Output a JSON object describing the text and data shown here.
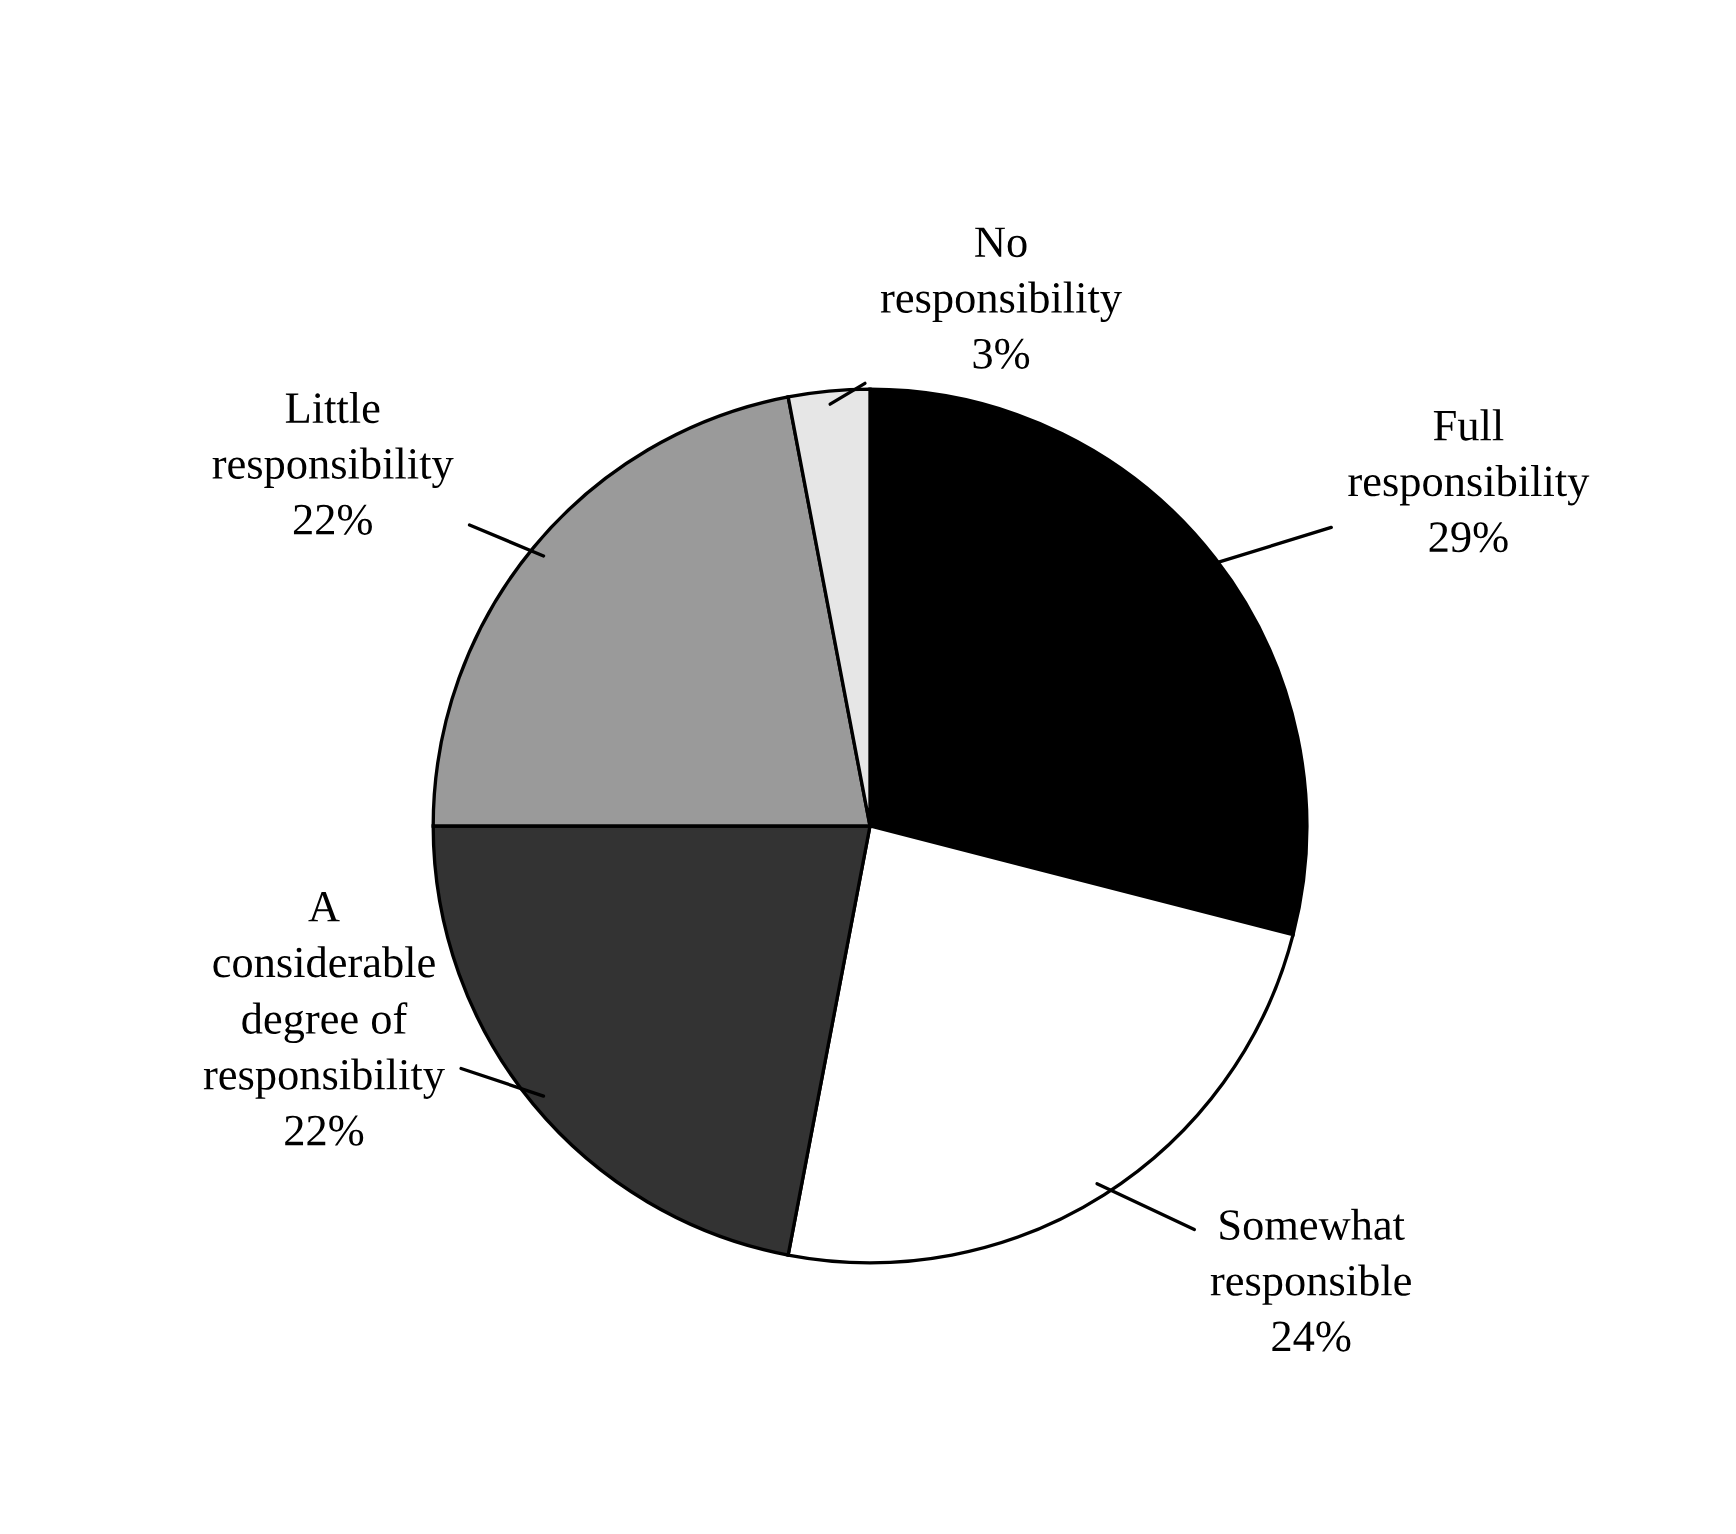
{
  "chart_data": {
    "type": "pie",
    "categories": [
      "Full\nresponsibility",
      "Somewhat\nresponsible",
      "A\nconsiderable\ndegree of\nresponsibility",
      "Little\nresponsibility",
      "No\nresponsibility"
    ],
    "values": [
      29,
      24,
      22,
      22,
      3
    ],
    "value_labels": [
      "29%",
      "24%",
      "22%",
      "22%",
      "3%"
    ],
    "colors": [
      "#000000",
      "#ffffff",
      "#333333",
      "#9a9a9a",
      "#e6e6e6"
    ]
  }
}
